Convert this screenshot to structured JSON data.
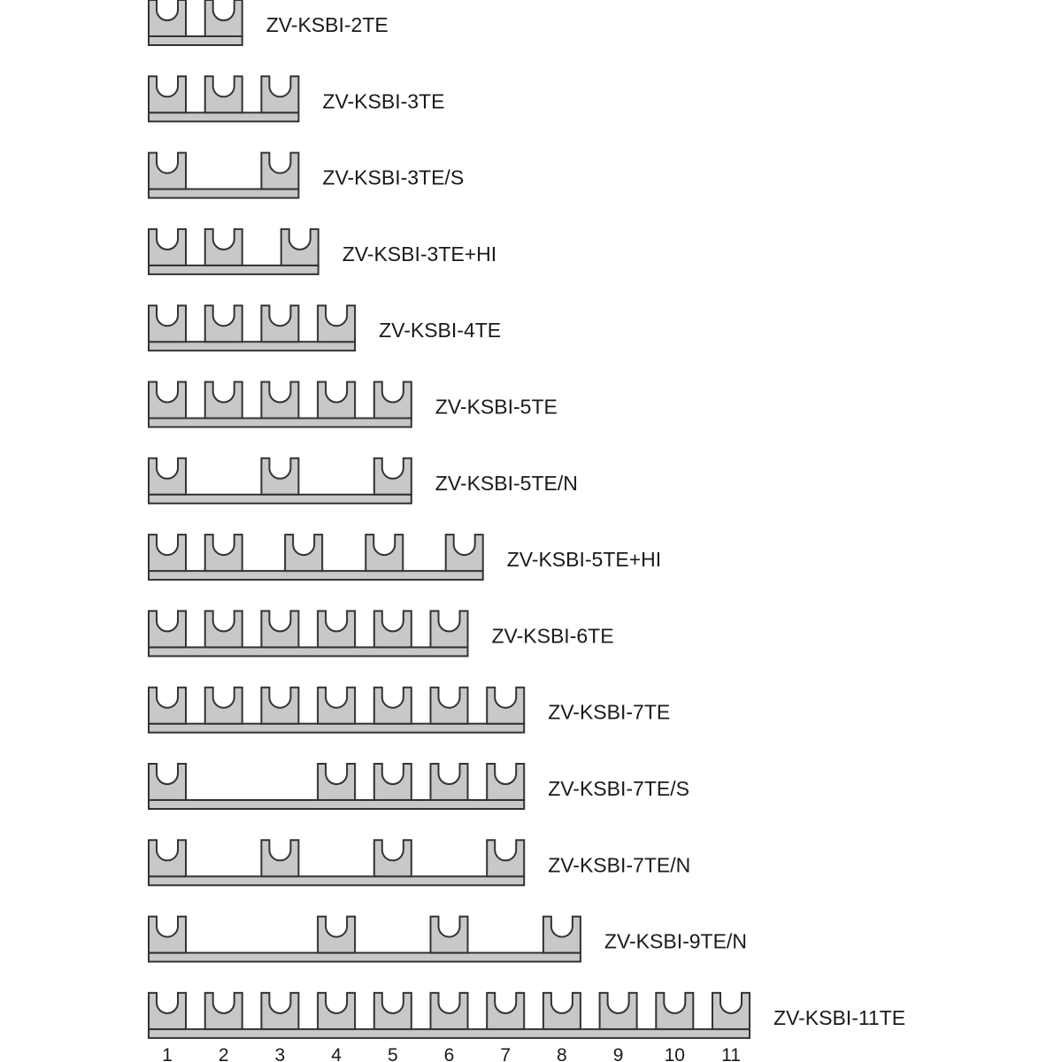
{
  "colors": {
    "fill": "#c8c8c8",
    "stroke": "#333333",
    "text": "#1a1a1a"
  },
  "module_units": "pole position (1 = first pole)",
  "busbars": [
    {
      "label": "ZV-KSBI-2TE",
      "teeth": [
        1,
        2
      ]
    },
    {
      "label": "ZV-KSBI-3TE",
      "teeth": [
        1,
        2,
        3
      ]
    },
    {
      "label": "ZV-KSBI-3TE/S",
      "teeth": [
        1,
        3
      ]
    },
    {
      "label": "ZV-KSBI-3TE+HI",
      "teeth": [
        1,
        2,
        3.35
      ]
    },
    {
      "label": "ZV-KSBI-4TE",
      "teeth": [
        1,
        2,
        3,
        4
      ]
    },
    {
      "label": "ZV-KSBI-5TE",
      "teeth": [
        1,
        2,
        3,
        4,
        5
      ]
    },
    {
      "label": "ZV-KSBI-5TE/N",
      "teeth": [
        1,
        3,
        5
      ]
    },
    {
      "label": "ZV-KSBI-5TE+HI",
      "teeth": [
        1,
        2,
        3.42,
        4.85,
        6.27
      ]
    },
    {
      "label": "ZV-KSBI-6TE",
      "teeth": [
        1,
        2,
        3,
        4,
        5,
        6
      ]
    },
    {
      "label": "ZV-KSBI-7TE",
      "teeth": [
        1,
        2,
        3,
        4,
        5,
        6,
        7
      ]
    },
    {
      "label": "ZV-KSBI-7TE/S",
      "teeth": [
        1,
        4,
        5,
        6,
        7
      ]
    },
    {
      "label": "ZV-KSBI-7TE/N",
      "teeth": [
        1,
        3,
        5,
        7
      ]
    },
    {
      "label": "ZV-KSBI-9TE/N",
      "teeth": [
        1,
        4,
        6,
        8
      ]
    },
    {
      "label": "ZV-KSBI-11TE",
      "teeth": [
        1,
        2,
        3,
        4,
        5,
        6,
        7,
        8,
        9,
        10,
        11
      ]
    }
  ],
  "pole_numbers": [
    "1",
    "2",
    "3",
    "4",
    "5",
    "6",
    "7",
    "8",
    "9",
    "10",
    "11"
  ]
}
